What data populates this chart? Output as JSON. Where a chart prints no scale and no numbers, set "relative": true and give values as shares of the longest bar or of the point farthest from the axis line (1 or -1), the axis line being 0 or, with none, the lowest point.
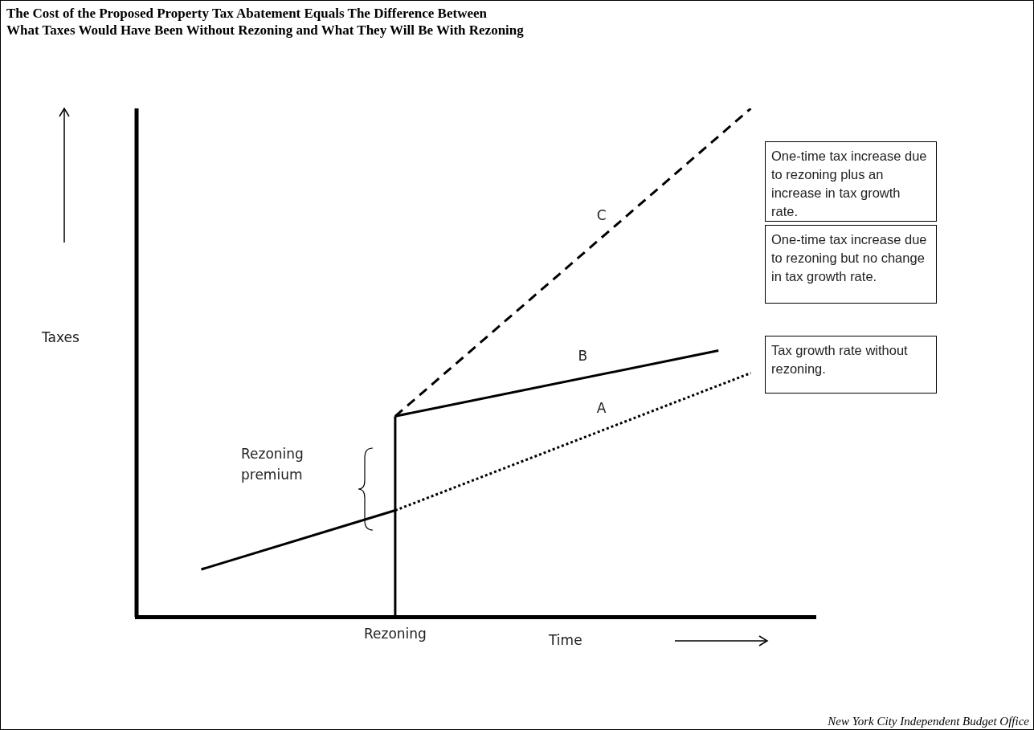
{
  "chart_data": {
    "type": "line",
    "title": "The Cost of the Proposed Property Tax Abatement Equals The Difference Between\nWhat Taxes Would Have Been Without Rezoning and What They Will Be With Rezoning",
    "xlabel": "Time",
    "ylabel": "Taxes",
    "relative": true,
    "legend": false,
    "grid": false,
    "marker": "none",
    "categories": [
      null,
      null,
      null,
      null,
      null,
      null,
      null,
      null,
      null,
      null,
      null,
      null,
      null,
      null,
      null,
      null,
      null,
      null,
      null,
      null,
      null,
      null
    ],
    "series": [
      {
        "color": "#000000",
        "line_style": "solid",
        "values": [
          null,
          null,
          0.094,
          null,
          null,
          null,
          null,
          null,
          0.21,
          null,
          null,
          null,
          null,
          null,
          null,
          null,
          null,
          null,
          null,
          null,
          null,
          null
        ]
      },
      {
        "name": "A",
        "color": "#000000",
        "line_style": "dotted",
        "values": [
          null,
          null,
          null,
          null,
          null,
          null,
          null,
          null,
          0.21,
          null,
          null,
          null,
          null,
          null,
          null,
          null,
          null,
          null,
          null,
          0.48,
          null,
          null
        ]
      },
      {
        "name": "B",
        "color": "#000000",
        "line_style": "solid",
        "values": [
          null,
          null,
          null,
          null,
          null,
          null,
          null,
          null,
          0.395,
          null,
          null,
          null,
          null,
          null,
          null,
          null,
          null,
          null,
          0.524,
          null,
          null,
          null
        ]
      },
      {
        "name": "C",
        "color": "#000000",
        "line_style": "dashed",
        "values": [
          null,
          null,
          null,
          null,
          null,
          null,
          null,
          null,
          0.395,
          null,
          null,
          null,
          null,
          null,
          null,
          null,
          null,
          null,
          null,
          1,
          null,
          null
        ]
      }
    ],
    "annotations": [
      "One-time tax increase due to rezoning plus an increase in tax growth rate.",
      "One-time tax increase due to rezoning but no change in tax growth rate.",
      "Tax growth rate without rezoning.",
      "Rezoning premium",
      "New York City Independent Budget Office",
      "Rezoning"
    ]
  }
}
